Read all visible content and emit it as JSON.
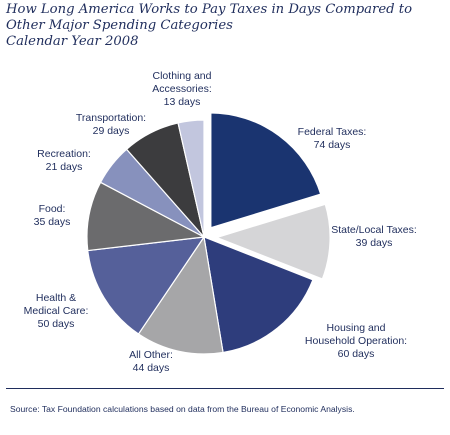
{
  "chart_data": {
    "type": "pie",
    "title_lines": [
      "How Long America Works to Pay Taxes in Days Compared to",
      "Other Major Spending Categories",
      "Calendar Year 2008"
    ],
    "unit": "days",
    "slices": [
      {
        "name": "Federal Taxes",
        "value": 74,
        "label_lines": [
          "Federal Taxes:",
          "74 days"
        ],
        "color": "#1a3470",
        "exploded": true
      },
      {
        "name": "State/Local Taxes",
        "value": 39,
        "label_lines": [
          "State/Local Taxes:",
          "39 days"
        ],
        "color": "#d5d5d7",
        "exploded": true
      },
      {
        "name": "Housing and Household Operation",
        "value": 60,
        "label_lines": [
          "Housing and",
          "Household Operation:",
          "60 days"
        ],
        "color": "#2e3d7c",
        "exploded": false
      },
      {
        "name": "All Other",
        "value": 44,
        "label_lines": [
          "All Other:",
          "44 days"
        ],
        "color": "#a6a6a8",
        "exploded": false
      },
      {
        "name": "Health & Medical Care",
        "value": 50,
        "label_lines": [
          "Health &",
          "Medical Care:",
          "50 days"
        ],
        "color": "#55609a",
        "exploded": false
      },
      {
        "name": "Food",
        "value": 35,
        "label_lines": [
          "Food:",
          "35 days"
        ],
        "color": "#6b6b6d",
        "exploded": false
      },
      {
        "name": "Recreation",
        "value": 21,
        "label_lines": [
          "Recreation:",
          "21 days"
        ],
        "color": "#8791bd",
        "exploded": false
      },
      {
        "name": "Transportation",
        "value": 29,
        "label_lines": [
          "Transportation:",
          "29 days"
        ],
        "color": "#3c3c3e",
        "exploded": false
      },
      {
        "name": "Clothing and Accessories",
        "value": 13,
        "label_lines": [
          "Clothing and",
          "Accessories:",
          "13 days"
        ],
        "color": "#c2c6de",
        "exploded": false
      }
    ],
    "legend": "none"
  },
  "source": "Source: Tax Foundation calculations based on data from the Bureau of Economic Analysis."
}
